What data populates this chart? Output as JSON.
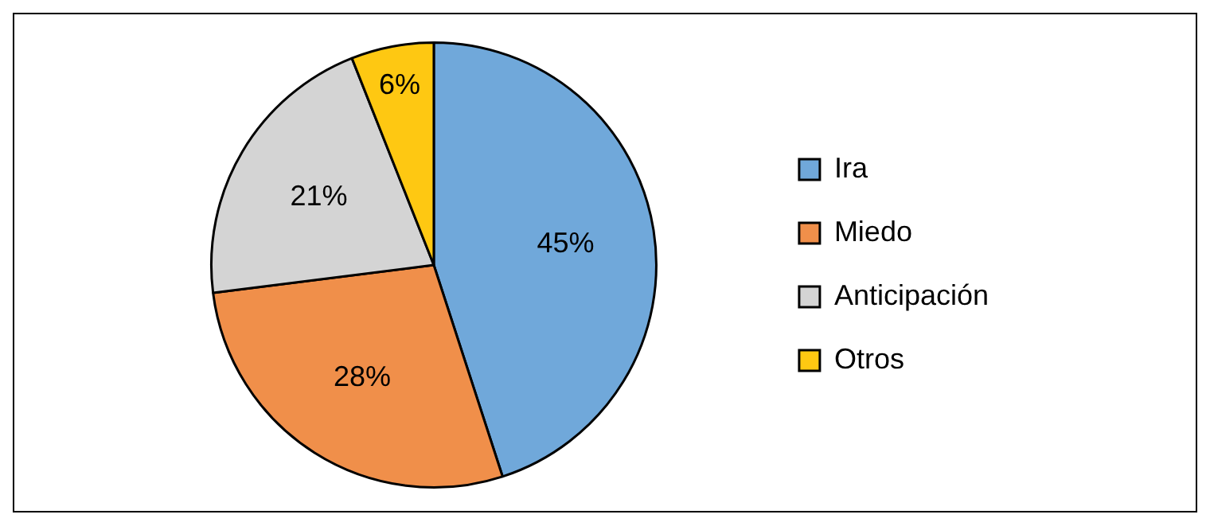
{
  "chart_data": {
    "type": "pie",
    "categories": [
      "Ira",
      "Miedo",
      "Anticipación",
      "Otros"
    ],
    "values": [
      45,
      28,
      21,
      6
    ],
    "colors": [
      "#70a8da",
      "#f08f4a",
      "#d4d4d4",
      "#fec812"
    ],
    "value_labels": [
      "45%",
      "28%",
      "21%",
      "6%"
    ],
    "legend": "right"
  }
}
